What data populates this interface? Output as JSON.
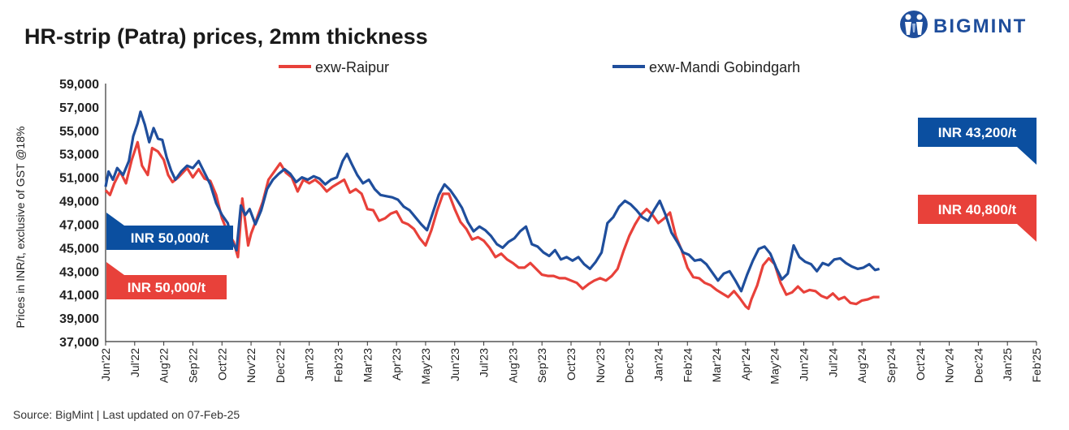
{
  "header": {
    "title": "HR-strip (Patra) prices, 2mm thickness",
    "brand": "BIGMINT"
  },
  "footer": {
    "source": "Source: BigMint",
    "updated": "Last updated on 07-Feb-25"
  },
  "colors": {
    "raipur": "#e8413a",
    "mandi": "#1f4e9c",
    "axis": "#333333",
    "callout_blue": "#0b4fa0",
    "callout_red": "#e8413a"
  },
  "chart_data": {
    "type": "line",
    "title": "HR-strip (Patra) prices, 2mm thickness",
    "ylabel": "Prices in INR/t, exclusive of GST @18%",
    "xlabel": "",
    "ylim": [
      37000,
      59000
    ],
    "yticks": [
      "37,000",
      "39,000",
      "41,000",
      "43,000",
      "45,000",
      "47,000",
      "49,000",
      "51,000",
      "53,000",
      "55,000",
      "57,000",
      "59,000"
    ],
    "categories": [
      "Jun'22",
      "Jul'22",
      "Aug'22",
      "Sep'22",
      "Oct'22",
      "Nov'22",
      "Dec'22",
      "Jan'23",
      "Feb'23",
      "Mar'23",
      "Apr'23",
      "May'23",
      "Jun'23",
      "Jul'23",
      "Aug'23",
      "Sep'23",
      "Oct'23",
      "Nov'23",
      "Dec'23",
      "Jan'24",
      "Feb'24",
      "Mar'24",
      "Apr'24",
      "May'24",
      "Jun'24",
      "Jul'24",
      "Aug'24",
      "Sep'24",
      "Oct'24",
      "Nov'24",
      "Dec'24",
      "Jan'25",
      "Feb'25"
    ],
    "legend_position": "top",
    "grid": false,
    "series": [
      {
        "name": "exw-Raipur",
        "color": "#e8413a",
        "points": [
          [
            0,
            49900
          ],
          [
            0.15,
            49500
          ],
          [
            0.3,
            50500
          ],
          [
            0.5,
            51500
          ],
          [
            0.7,
            50500
          ],
          [
            0.9,
            52500
          ],
          [
            1.1,
            54000
          ],
          [
            1.25,
            52000
          ],
          [
            1.45,
            51200
          ],
          [
            1.6,
            53500
          ],
          [
            1.8,
            53200
          ],
          [
            2.0,
            52500
          ],
          [
            2.15,
            51200
          ],
          [
            2.3,
            50600
          ],
          [
            2.5,
            51000
          ],
          [
            2.8,
            51800
          ],
          [
            3.0,
            51000
          ],
          [
            3.2,
            51700
          ],
          [
            3.4,
            50900
          ],
          [
            3.6,
            50700
          ],
          [
            3.8,
            49500
          ],
          [
            4.0,
            47500
          ],
          [
            4.2,
            46300
          ],
          [
            4.4,
            45500
          ],
          [
            4.55,
            44200
          ],
          [
            4.7,
            49200
          ],
          [
            4.9,
            45200
          ],
          [
            5.0,
            46200
          ],
          [
            5.2,
            47500
          ],
          [
            5.4,
            48900
          ],
          [
            5.6,
            50800
          ],
          [
            5.8,
            51500
          ],
          [
            6.0,
            52200
          ],
          [
            6.2,
            51400
          ],
          [
            6.4,
            51000
          ],
          [
            6.6,
            49800
          ],
          [
            6.8,
            50800
          ],
          [
            7.0,
            50500
          ],
          [
            7.2,
            50800
          ],
          [
            7.4,
            50400
          ],
          [
            7.6,
            49800
          ],
          [
            7.8,
            50200
          ],
          [
            8.0,
            50500
          ],
          [
            8.2,
            50800
          ],
          [
            8.4,
            49700
          ],
          [
            8.6,
            50000
          ],
          [
            8.8,
            49600
          ],
          [
            9.0,
            48300
          ],
          [
            9.2,
            48200
          ],
          [
            9.4,
            47300
          ],
          [
            9.6,
            47500
          ],
          [
            9.8,
            47900
          ],
          [
            10.0,
            48100
          ],
          [
            10.2,
            47200
          ],
          [
            10.4,
            47000
          ],
          [
            10.6,
            46600
          ],
          [
            10.8,
            45800
          ],
          [
            11.0,
            45200
          ],
          [
            11.2,
            46500
          ],
          [
            11.4,
            48200
          ],
          [
            11.6,
            49600
          ],
          [
            11.8,
            49600
          ],
          [
            12.0,
            48300
          ],
          [
            12.2,
            47200
          ],
          [
            12.4,
            46600
          ],
          [
            12.6,
            45700
          ],
          [
            12.8,
            45900
          ],
          [
            13.0,
            45600
          ],
          [
            13.2,
            45000
          ],
          [
            13.4,
            44200
          ],
          [
            13.6,
            44500
          ],
          [
            13.8,
            44000
          ],
          [
            14.0,
            43700
          ],
          [
            14.2,
            43300
          ],
          [
            14.4,
            43300
          ],
          [
            14.6,
            43700
          ],
          [
            14.8,
            43200
          ],
          [
            15.0,
            42700
          ],
          [
            15.2,
            42600
          ],
          [
            15.4,
            42600
          ],
          [
            15.6,
            42400
          ],
          [
            15.8,
            42400
          ],
          [
            16.0,
            42200
          ],
          [
            16.2,
            42000
          ],
          [
            16.4,
            41500
          ],
          [
            16.6,
            41900
          ],
          [
            16.8,
            42200
          ],
          [
            17.0,
            42400
          ],
          [
            17.2,
            42200
          ],
          [
            17.4,
            42600
          ],
          [
            17.6,
            43200
          ],
          [
            17.8,
            44700
          ],
          [
            18.0,
            46000
          ],
          [
            18.2,
            47000
          ],
          [
            18.4,
            47800
          ],
          [
            18.6,
            48300
          ],
          [
            18.8,
            47800
          ],
          [
            19.0,
            47100
          ],
          [
            19.2,
            47500
          ],
          [
            19.4,
            48000
          ],
          [
            19.6,
            46000
          ],
          [
            19.8,
            44800
          ],
          [
            20.0,
            43300
          ],
          [
            20.2,
            42500
          ],
          [
            20.4,
            42400
          ],
          [
            20.6,
            42000
          ],
          [
            20.8,
            41800
          ],
          [
            21.0,
            41400
          ],
          [
            21.2,
            41100
          ],
          [
            21.4,
            40800
          ],
          [
            21.6,
            41300
          ],
          [
            21.8,
            40700
          ],
          [
            22.0,
            40000
          ],
          [
            22.1,
            39800
          ],
          [
            22.2,
            40600
          ],
          [
            22.4,
            41800
          ],
          [
            22.6,
            43500
          ],
          [
            22.8,
            44100
          ],
          [
            23.0,
            43600
          ],
          [
            23.2,
            42000
          ],
          [
            23.4,
            41000
          ],
          [
            23.6,
            41200
          ],
          [
            23.8,
            41700
          ],
          [
            24.0,
            41200
          ],
          [
            24.2,
            41400
          ],
          [
            24.4,
            41300
          ],
          [
            24.6,
            40900
          ],
          [
            24.8,
            40700
          ],
          [
            25.0,
            41100
          ],
          [
            25.2,
            40600
          ],
          [
            25.4,
            40800
          ],
          [
            25.6,
            40300
          ],
          [
            25.8,
            40200
          ],
          [
            26.0,
            40500
          ],
          [
            26.2,
            40600
          ],
          [
            26.4,
            40800
          ],
          [
            26.6,
            40800
          ]
        ]
      },
      {
        "name": "exw-Mandi Gobindgarh",
        "color": "#1f4e9c",
        "points": [
          [
            0,
            50200
          ],
          [
            0.1,
            51500
          ],
          [
            0.25,
            50800
          ],
          [
            0.4,
            51800
          ],
          [
            0.6,
            51200
          ],
          [
            0.8,
            52400
          ],
          [
            0.95,
            54500
          ],
          [
            1.1,
            55600
          ],
          [
            1.2,
            56600
          ],
          [
            1.35,
            55500
          ],
          [
            1.5,
            54000
          ],
          [
            1.65,
            55200
          ],
          [
            1.8,
            54300
          ],
          [
            1.95,
            54200
          ],
          [
            2.1,
            52700
          ],
          [
            2.25,
            51600
          ],
          [
            2.4,
            50800
          ],
          [
            2.6,
            51500
          ],
          [
            2.8,
            52000
          ],
          [
            3.0,
            51800
          ],
          [
            3.2,
            52400
          ],
          [
            3.4,
            51400
          ],
          [
            3.6,
            50400
          ],
          [
            3.8,
            48800
          ],
          [
            4.0,
            47800
          ],
          [
            4.2,
            47100
          ],
          [
            4.35,
            45500
          ],
          [
            4.5,
            44800
          ],
          [
            4.65,
            48600
          ],
          [
            4.8,
            47800
          ],
          [
            4.95,
            48300
          ],
          [
            5.15,
            47000
          ],
          [
            5.35,
            48200
          ],
          [
            5.55,
            50000
          ],
          [
            5.75,
            50800
          ],
          [
            5.95,
            51300
          ],
          [
            6.15,
            51700
          ],
          [
            6.35,
            51300
          ],
          [
            6.55,
            50600
          ],
          [
            6.75,
            51000
          ],
          [
            6.95,
            50800
          ],
          [
            7.15,
            51100
          ],
          [
            7.35,
            50900
          ],
          [
            7.55,
            50400
          ],
          [
            7.75,
            50800
          ],
          [
            7.95,
            51000
          ],
          [
            8.15,
            52400
          ],
          [
            8.3,
            53000
          ],
          [
            8.45,
            52200
          ],
          [
            8.65,
            51200
          ],
          [
            8.85,
            50500
          ],
          [
            9.05,
            50800
          ],
          [
            9.25,
            50000
          ],
          [
            9.45,
            49500
          ],
          [
            9.65,
            49400
          ],
          [
            9.85,
            49300
          ],
          [
            10.05,
            49100
          ],
          [
            10.25,
            48500
          ],
          [
            10.45,
            48200
          ],
          [
            10.65,
            47600
          ],
          [
            10.85,
            47000
          ],
          [
            11.05,
            46500
          ],
          [
            11.25,
            48000
          ],
          [
            11.45,
            49500
          ],
          [
            11.65,
            50400
          ],
          [
            11.85,
            49900
          ],
          [
            12.05,
            49200
          ],
          [
            12.25,
            48400
          ],
          [
            12.45,
            47200
          ],
          [
            12.65,
            46400
          ],
          [
            12.85,
            46800
          ],
          [
            13.05,
            46500
          ],
          [
            13.25,
            46000
          ],
          [
            13.45,
            45300
          ],
          [
            13.65,
            45000
          ],
          [
            13.85,
            45500
          ],
          [
            14.05,
            45800
          ],
          [
            14.25,
            46400
          ],
          [
            14.45,
            46800
          ],
          [
            14.65,
            45300
          ],
          [
            14.85,
            45100
          ],
          [
            15.05,
            44600
          ],
          [
            15.25,
            44300
          ],
          [
            15.45,
            44800
          ],
          [
            15.65,
            44000
          ],
          [
            15.85,
            44200
          ],
          [
            16.05,
            43900
          ],
          [
            16.25,
            44200
          ],
          [
            16.45,
            43600
          ],
          [
            16.65,
            43200
          ],
          [
            16.85,
            43800
          ],
          [
            17.05,
            44600
          ],
          [
            17.25,
            47100
          ],
          [
            17.45,
            47600
          ],
          [
            17.65,
            48500
          ],
          [
            17.85,
            49000
          ],
          [
            18.05,
            48700
          ],
          [
            18.25,
            48200
          ],
          [
            18.45,
            47600
          ],
          [
            18.65,
            47300
          ],
          [
            18.85,
            48200
          ],
          [
            19.05,
            49000
          ],
          [
            19.25,
            47800
          ],
          [
            19.45,
            46300
          ],
          [
            19.65,
            45500
          ],
          [
            19.85,
            44600
          ],
          [
            20.05,
            44400
          ],
          [
            20.25,
            43900
          ],
          [
            20.45,
            44000
          ],
          [
            20.65,
            43600
          ],
          [
            20.85,
            42900
          ],
          [
            21.05,
            42200
          ],
          [
            21.25,
            42800
          ],
          [
            21.45,
            43000
          ],
          [
            21.65,
            42200
          ],
          [
            21.85,
            41300
          ],
          [
            22.05,
            42700
          ],
          [
            22.25,
            43900
          ],
          [
            22.45,
            44900
          ],
          [
            22.65,
            45100
          ],
          [
            22.85,
            44500
          ],
          [
            23.05,
            43300
          ],
          [
            23.25,
            42300
          ],
          [
            23.45,
            42800
          ],
          [
            23.65,
            45200
          ],
          [
            23.85,
            44200
          ],
          [
            24.05,
            43800
          ],
          [
            24.25,
            43600
          ],
          [
            24.45,
            43000
          ],
          [
            24.65,
            43700
          ],
          [
            24.85,
            43500
          ],
          [
            25.05,
            44000
          ],
          [
            25.25,
            44100
          ],
          [
            25.45,
            43700
          ],
          [
            25.65,
            43400
          ],
          [
            25.85,
            43200
          ],
          [
            26.05,
            43300
          ],
          [
            26.25,
            43600
          ],
          [
            26.45,
            43100
          ],
          [
            26.6,
            43200
          ]
        ]
      }
    ],
    "annotations": [
      {
        "text": "INR 43,200/t",
        "series": "exw-Mandi Gobindgarh",
        "side": "end"
      },
      {
        "text": "INR 40,800/t",
        "series": "exw-Raipur",
        "side": "end"
      },
      {
        "text": "INR 50,000/t",
        "series": "exw-Mandi Gobindgarh",
        "side": "start"
      },
      {
        "text": "INR 50,000/t",
        "series": "exw-Raipur",
        "side": "start"
      }
    ]
  }
}
